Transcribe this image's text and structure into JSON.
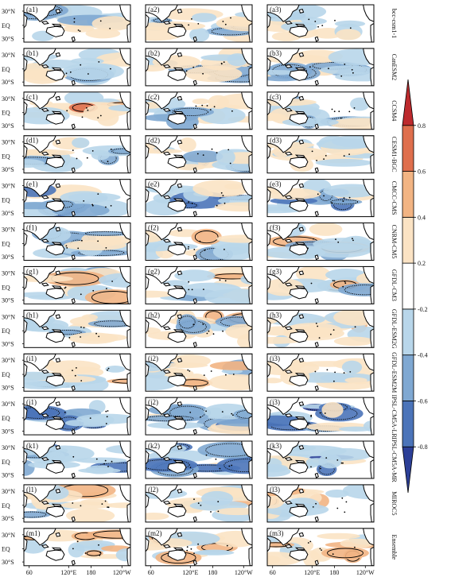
{
  "chart_data": {
    "type": "heatmap",
    "title": "",
    "layout": {
      "rows": 13,
      "cols": 3
    },
    "models": [
      "bcc-csm1-1",
      "CanESM2",
      "CCSM4",
      "CESM1-BGC",
      "CMCC-CMS",
      "CNRM-CM5",
      "GFDL-CM3",
      "GFDL-ESM2G",
      "GFDL-ESM2M",
      "IPSL-CM5A-LR",
      "IPSL-CM5A-MR",
      "MIROC5",
      "Ensemble"
    ],
    "panel_labels": [
      [
        "(a1)",
        "(a2)",
        "(a3)"
      ],
      [
        "(b1)",
        "(b2)",
        "(b3)"
      ],
      [
        "(c1)",
        "(c2)",
        "(c3)"
      ],
      [
        "(d1)",
        "(d2)",
        "(d3)"
      ],
      [
        "(e1)",
        "(e2)",
        "(e3)"
      ],
      [
        "(f1)",
        "(f2)",
        "(f3)"
      ],
      [
        "(g1)",
        "(g2)",
        "(g3)"
      ],
      [
        "(h1)",
        "(h2)",
        "(h3)"
      ],
      [
        "(i1)",
        "(i2)",
        "(i3)"
      ],
      [
        "(j1)",
        "(j2)",
        "(j3)"
      ],
      [
        "(k1)",
        "(k2)",
        "(k3)"
      ],
      [
        "(l1)",
        "(l2)",
        "(l3)"
      ],
      [
        "(m1)",
        "(m2)",
        "(m3)"
      ]
    ],
    "y_ticks": [
      "30°N",
      "EQ",
      "30°S"
    ],
    "x_ticks": [
      "60",
      "120°E",
      "180",
      "120°W"
    ],
    "colorbar": {
      "ticks": [
        "-0.8",
        "-0.6",
        "-0.4",
        "-0.2",
        "0.2",
        "0.4",
        "0.6",
        "0.8"
      ],
      "levels": [
        -1.0,
        -0.8,
        -0.6,
        -0.4,
        -0.2,
        0.2,
        0.4,
        0.6,
        0.8,
        1.0
      ],
      "colors": [
        "#2c3f97",
        "#4b74b9",
        "#7fa8d2",
        "#b8d6ea",
        "#ffffff",
        "#fbe3c4",
        "#f2b483",
        "#df6f4d",
        "#bd2a2d"
      ],
      "extend": "both"
    },
    "colors": {
      "land": "#ffffff",
      "coast": "#000000",
      "contour": "#000000"
    }
  }
}
